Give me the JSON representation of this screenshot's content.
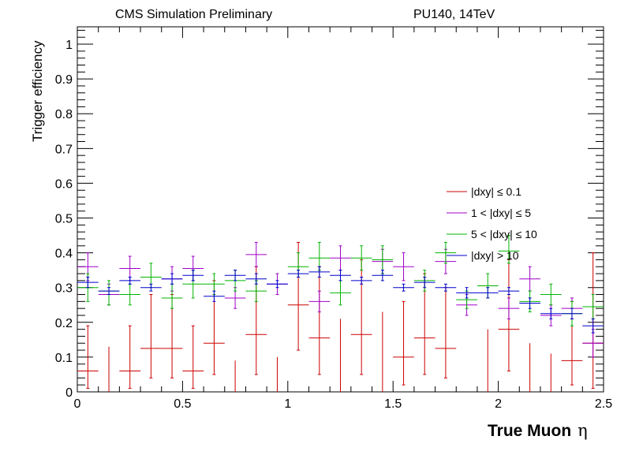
{
  "header": {
    "left": "CMS Simulation Preliminary",
    "right": "PU140, 14TeV"
  },
  "chart_data": {
    "type": "scatter",
    "title": "",
    "xlabel": "True Muon",
    "xlabel_symbol": "η",
    "ylabel": "Trigger efficiency",
    "xlim": [
      0,
      2.5
    ],
    "ylim": [
      0,
      1.05
    ],
    "xticks": [
      0,
      0.5,
      1,
      1.5,
      2,
      2.5
    ],
    "xtick_labels": [
      "0",
      "0.5",
      "1",
      "1.5",
      "2",
      "2.5"
    ],
    "yticks": [
      0,
      0.1,
      0.2,
      0.3,
      0.4,
      0.5,
      0.6,
      0.7,
      0.8,
      0.9,
      1
    ],
    "ytick_labels": [
      "0",
      "0.1",
      "0.2",
      "0.3",
      "0.4",
      "0.5",
      "0.6",
      "0.7",
      "0.8",
      "0.9",
      "1"
    ],
    "bin_half_width": 0.05,
    "legend_position": "right",
    "series": [
      {
        "name": "|dxy| ≤ 0.1",
        "color": "#cc0000",
        "x": [
          0.05,
          0.25,
          0.35,
          0.45,
          0.55,
          0.65,
          0.85,
          1.05,
          1.15,
          1.35,
          1.55,
          1.65,
          1.75,
          2.05,
          2.35,
          2.45
        ],
        "y": [
          0.06,
          0.06,
          0.125,
          0.125,
          0.06,
          0.14,
          0.165,
          0.25,
          0.155,
          0.165,
          0.1,
          0.155,
          0.125,
          0.18,
          0.09,
          0.14
        ],
        "ylow": [
          0.01,
          0.01,
          0.04,
          0.04,
          0.01,
          0.05,
          0.05,
          0.12,
          0.05,
          0.05,
          0.02,
          0.05,
          0.04,
          0.06,
          0.02,
          0.01
        ],
        "yhigh": [
          0.19,
          0.19,
          0.28,
          0.28,
          0.19,
          0.32,
          0.36,
          0.43,
          0.36,
          0.38,
          0.26,
          0.34,
          0.3,
          0.38,
          0.26,
          0.4
        ],
        "errbar_only": [
          0.15,
          0.75,
          0.95,
          1.25,
          1.45,
          1.95,
          2.15,
          2.25
        ],
        "errbar_only_high": [
          0.13,
          0.09,
          0.1,
          0.21,
          0.23,
          0.18,
          0.14,
          0.11
        ]
      },
      {
        "name": "1 < |dxy| ≤ 5",
        "color": "#a000c8",
        "x": [
          0.05,
          0.15,
          0.25,
          0.45,
          0.55,
          0.75,
          0.85,
          0.95,
          1.15,
          1.25,
          1.45,
          1.55,
          1.75,
          1.85,
          2.05,
          2.15,
          2.25,
          2.35,
          2.45
        ],
        "y": [
          0.36,
          0.28,
          0.355,
          0.325,
          0.355,
          0.27,
          0.395,
          0.31,
          0.26,
          0.385,
          0.375,
          0.36,
          0.375,
          0.25,
          0.24,
          0.325,
          0.22,
          0.24,
          0.14
        ],
        "ylow": [
          0.32,
          0.25,
          0.32,
          0.29,
          0.32,
          0.24,
          0.36,
          0.28,
          0.23,
          0.35,
          0.34,
          0.32,
          0.34,
          0.22,
          0.21,
          0.29,
          0.19,
          0.21,
          0.1
        ],
        "yhigh": [
          0.4,
          0.31,
          0.39,
          0.36,
          0.39,
          0.3,
          0.43,
          0.34,
          0.29,
          0.42,
          0.41,
          0.4,
          0.41,
          0.28,
          0.27,
          0.36,
          0.25,
          0.27,
          0.18
        ]
      },
      {
        "name": "5 < |dxy| ≤ 10",
        "color": "#00b400",
        "x": [
          0.05,
          0.15,
          0.25,
          0.35,
          0.45,
          0.55,
          0.65,
          0.75,
          0.85,
          1.05,
          1.15,
          1.25,
          1.35,
          1.45,
          1.65,
          1.75,
          1.85,
          1.95,
          2.05,
          2.15,
          2.25,
          2.35,
          2.45
        ],
        "y": [
          0.3,
          0.29,
          0.28,
          0.33,
          0.27,
          0.31,
          0.31,
          0.32,
          0.29,
          0.36,
          0.385,
          0.285,
          0.385,
          0.38,
          0.32,
          0.4,
          0.265,
          0.305,
          0.405,
          0.26,
          0.28,
          0.225,
          0.245
        ],
        "ylow": [
          0.26,
          0.25,
          0.25,
          0.3,
          0.24,
          0.27,
          0.28,
          0.29,
          0.26,
          0.33,
          0.35,
          0.25,
          0.35,
          0.34,
          0.29,
          0.37,
          0.24,
          0.27,
          0.37,
          0.23,
          0.25,
          0.19,
          0.21
        ],
        "yhigh": [
          0.34,
          0.32,
          0.31,
          0.37,
          0.31,
          0.35,
          0.34,
          0.35,
          0.32,
          0.4,
          0.43,
          0.32,
          0.42,
          0.42,
          0.35,
          0.43,
          0.29,
          0.34,
          0.45,
          0.29,
          0.31,
          0.26,
          0.28
        ]
      },
      {
        "name": "|dxy| > 10",
        "color": "#0000cc",
        "x": [
          0.05,
          0.15,
          0.25,
          0.35,
          0.45,
          0.55,
          0.65,
          0.75,
          0.85,
          0.95,
          1.05,
          1.15,
          1.25,
          1.35,
          1.45,
          1.55,
          1.65,
          1.75,
          1.85,
          1.95,
          2.05,
          2.15,
          2.25,
          2.35,
          2.45
        ],
        "y": [
          0.315,
          0.29,
          0.32,
          0.3,
          0.325,
          0.335,
          0.275,
          0.335,
          0.325,
          0.31,
          0.34,
          0.345,
          0.335,
          0.32,
          0.335,
          0.3,
          0.315,
          0.3,
          0.285,
          0.285,
          0.29,
          0.255,
          0.225,
          0.225,
          0.19
        ],
        "ylow": [
          0.3,
          0.28,
          0.31,
          0.29,
          0.31,
          0.32,
          0.26,
          0.32,
          0.31,
          0.3,
          0.33,
          0.33,
          0.32,
          0.31,
          0.32,
          0.29,
          0.3,
          0.29,
          0.27,
          0.27,
          0.28,
          0.24,
          0.21,
          0.21,
          0.17
        ],
        "yhigh": [
          0.33,
          0.3,
          0.33,
          0.31,
          0.34,
          0.35,
          0.29,
          0.35,
          0.34,
          0.32,
          0.35,
          0.36,
          0.35,
          0.33,
          0.35,
          0.31,
          0.33,
          0.31,
          0.3,
          0.3,
          0.3,
          0.27,
          0.24,
          0.24,
          0.21
        ]
      }
    ]
  }
}
